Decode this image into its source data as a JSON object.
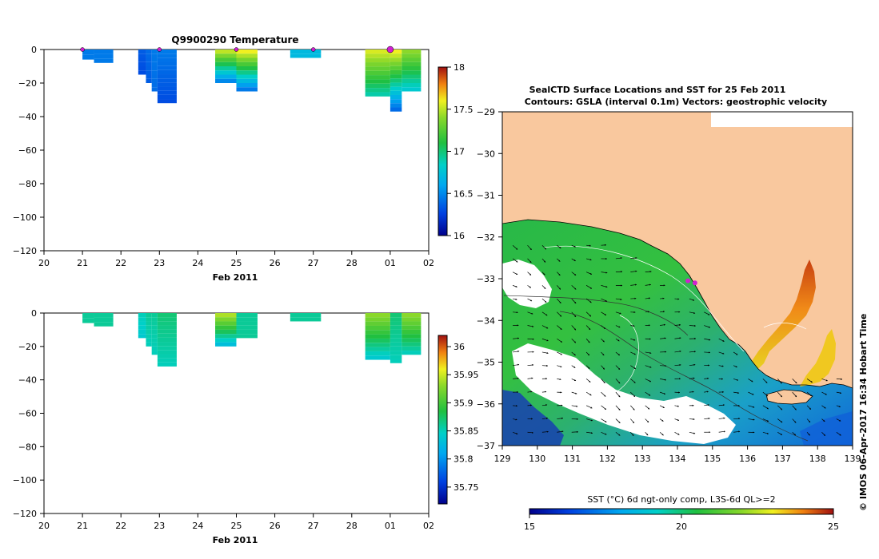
{
  "chart_data": [
    {
      "type": "heatmap",
      "title": "Q9900290  Temperature",
      "xlabel": "Feb 2011",
      "ylabel": "",
      "xticks": [
        "20",
        "21",
        "22",
        "23",
        "24",
        "25",
        "26",
        "27",
        "28",
        "01",
        "02"
      ],
      "yticks": [
        "0",
        "−20",
        "−40",
        "−60",
        "−80",
        "−100",
        "−120"
      ],
      "ylim": [
        -120,
        0
      ],
      "colorbar": {
        "min": 16,
        "max": 18,
        "ticks": [
          "18",
          "17.5",
          "17",
          "16.5",
          "16"
        ]
      },
      "surface_markers": [
        21,
        23,
        25,
        27,
        29
      ],
      "profiles": [
        {
          "x": 21.0,
          "w": 0.3,
          "depth": 6,
          "top": 16.45,
          "bottom": 16.45
        },
        {
          "x": 21.3,
          "w": 0.5,
          "depth": 8,
          "top": 16.45,
          "bottom": 16.45
        },
        {
          "x": 22.45,
          "w": 0.2,
          "depth": 15,
          "top": 16.35,
          "bottom": 16.3
        },
        {
          "x": 22.65,
          "w": 0.15,
          "depth": 20,
          "top": 16.4,
          "bottom": 16.35
        },
        {
          "x": 22.8,
          "w": 0.15,
          "depth": 25,
          "top": 16.45,
          "bottom": 16.4
        },
        {
          "x": 22.95,
          "w": 0.5,
          "depth": 32,
          "top": 16.45,
          "bottom": 16.3
        },
        {
          "x": 24.45,
          "w": 0.55,
          "depth": 20,
          "top": 17.5,
          "bottom": 16.5
        },
        {
          "x": 25.0,
          "w": 0.55,
          "depth": 25,
          "top": 17.6,
          "bottom": 16.45
        },
        {
          "x": 26.4,
          "w": 0.8,
          "depth": 5,
          "top": 16.7,
          "bottom": 16.7
        },
        {
          "x": 28.35,
          "w": 0.65,
          "depth": 28,
          "top": 17.55,
          "bottom": 16.9
        },
        {
          "x": 29.0,
          "w": 0.3,
          "depth": 37,
          "top": 17.6,
          "bottom": 16.4
        },
        {
          "x": 29.3,
          "w": 0.5,
          "depth": 25,
          "top": 17.4,
          "bottom": 16.8
        }
      ]
    },
    {
      "type": "heatmap",
      "title": "",
      "xlabel": "Feb 2011",
      "ylabel": "",
      "xticks": [
        "20",
        "21",
        "22",
        "23",
        "24",
        "25",
        "26",
        "27",
        "28",
        "01",
        "02"
      ],
      "yticks": [
        "0",
        "−20",
        "−40",
        "−60",
        "−80",
        "−100",
        "−120"
      ],
      "ylim": [
        -120,
        0
      ],
      "colorbar": {
        "min": 35.72,
        "max": 36.02,
        "ticks": [
          "36",
          "35.95",
          "35.9",
          "35.85",
          "35.8",
          "35.75"
        ]
      },
      "profiles": [
        {
          "x": 21.0,
          "w": 0.3,
          "depth": 6,
          "top": 35.86,
          "bottom": 35.86
        },
        {
          "x": 21.3,
          "w": 0.5,
          "depth": 8,
          "top": 35.86,
          "bottom": 35.86
        },
        {
          "x": 22.45,
          "w": 0.2,
          "depth": 15,
          "top": 35.85,
          "bottom": 35.84
        },
        {
          "x": 22.65,
          "w": 0.15,
          "depth": 20,
          "top": 35.86,
          "bottom": 35.85
        },
        {
          "x": 22.8,
          "w": 0.15,
          "depth": 25,
          "top": 35.86,
          "bottom": 35.85
        },
        {
          "x": 22.95,
          "w": 0.5,
          "depth": 32,
          "top": 35.87,
          "bottom": 35.85
        },
        {
          "x": 24.45,
          "w": 0.55,
          "depth": 20,
          "top": 35.94,
          "bottom": 35.83
        },
        {
          "x": 25.0,
          "w": 0.55,
          "depth": 15,
          "top": 35.86,
          "bottom": 35.86
        },
        {
          "x": 26.4,
          "w": 0.8,
          "depth": 5,
          "top": 35.86,
          "bottom": 35.86
        },
        {
          "x": 28.35,
          "w": 0.65,
          "depth": 28,
          "top": 35.93,
          "bottom": 35.84
        },
        {
          "x": 29.0,
          "w": 0.3,
          "depth": 30,
          "top": 35.87,
          "bottom": 35.85
        },
        {
          "x": 29.3,
          "w": 0.5,
          "depth": 25,
          "top": 35.93,
          "bottom": 35.85
        }
      ]
    },
    {
      "type": "heatmap",
      "title": "SealCTD Surface Locations and SST for 25 Feb 2011",
      "subtitle": "Contours: GSLA (interval 0.1m) Vectors: geostrophic velocity",
      "xticks": [
        "129",
        "130",
        "131",
        "132",
        "133",
        "134",
        "135",
        "136",
        "137",
        "138",
        "139"
      ],
      "yticks": [
        "−29",
        "−30",
        "−31",
        "−32",
        "−33",
        "−34",
        "−35",
        "−36",
        "−37"
      ],
      "xlim": [
        129,
        139
      ],
      "ylim": [
        -37,
        -29
      ],
      "colorbar": {
        "label": "SST (°C) 6d ngt-only comp, L3S-6d QL>=2",
        "min": 15,
        "max": 25,
        "ticks": [
          "15",
          "20",
          "25"
        ]
      },
      "seal_locations": [
        [
          134.3,
          -33.05
        ],
        [
          134.5,
          -33.1
        ]
      ],
      "side_label": "© IMOS 06-Apr-2017 16:34 Hobart Time"
    }
  ]
}
